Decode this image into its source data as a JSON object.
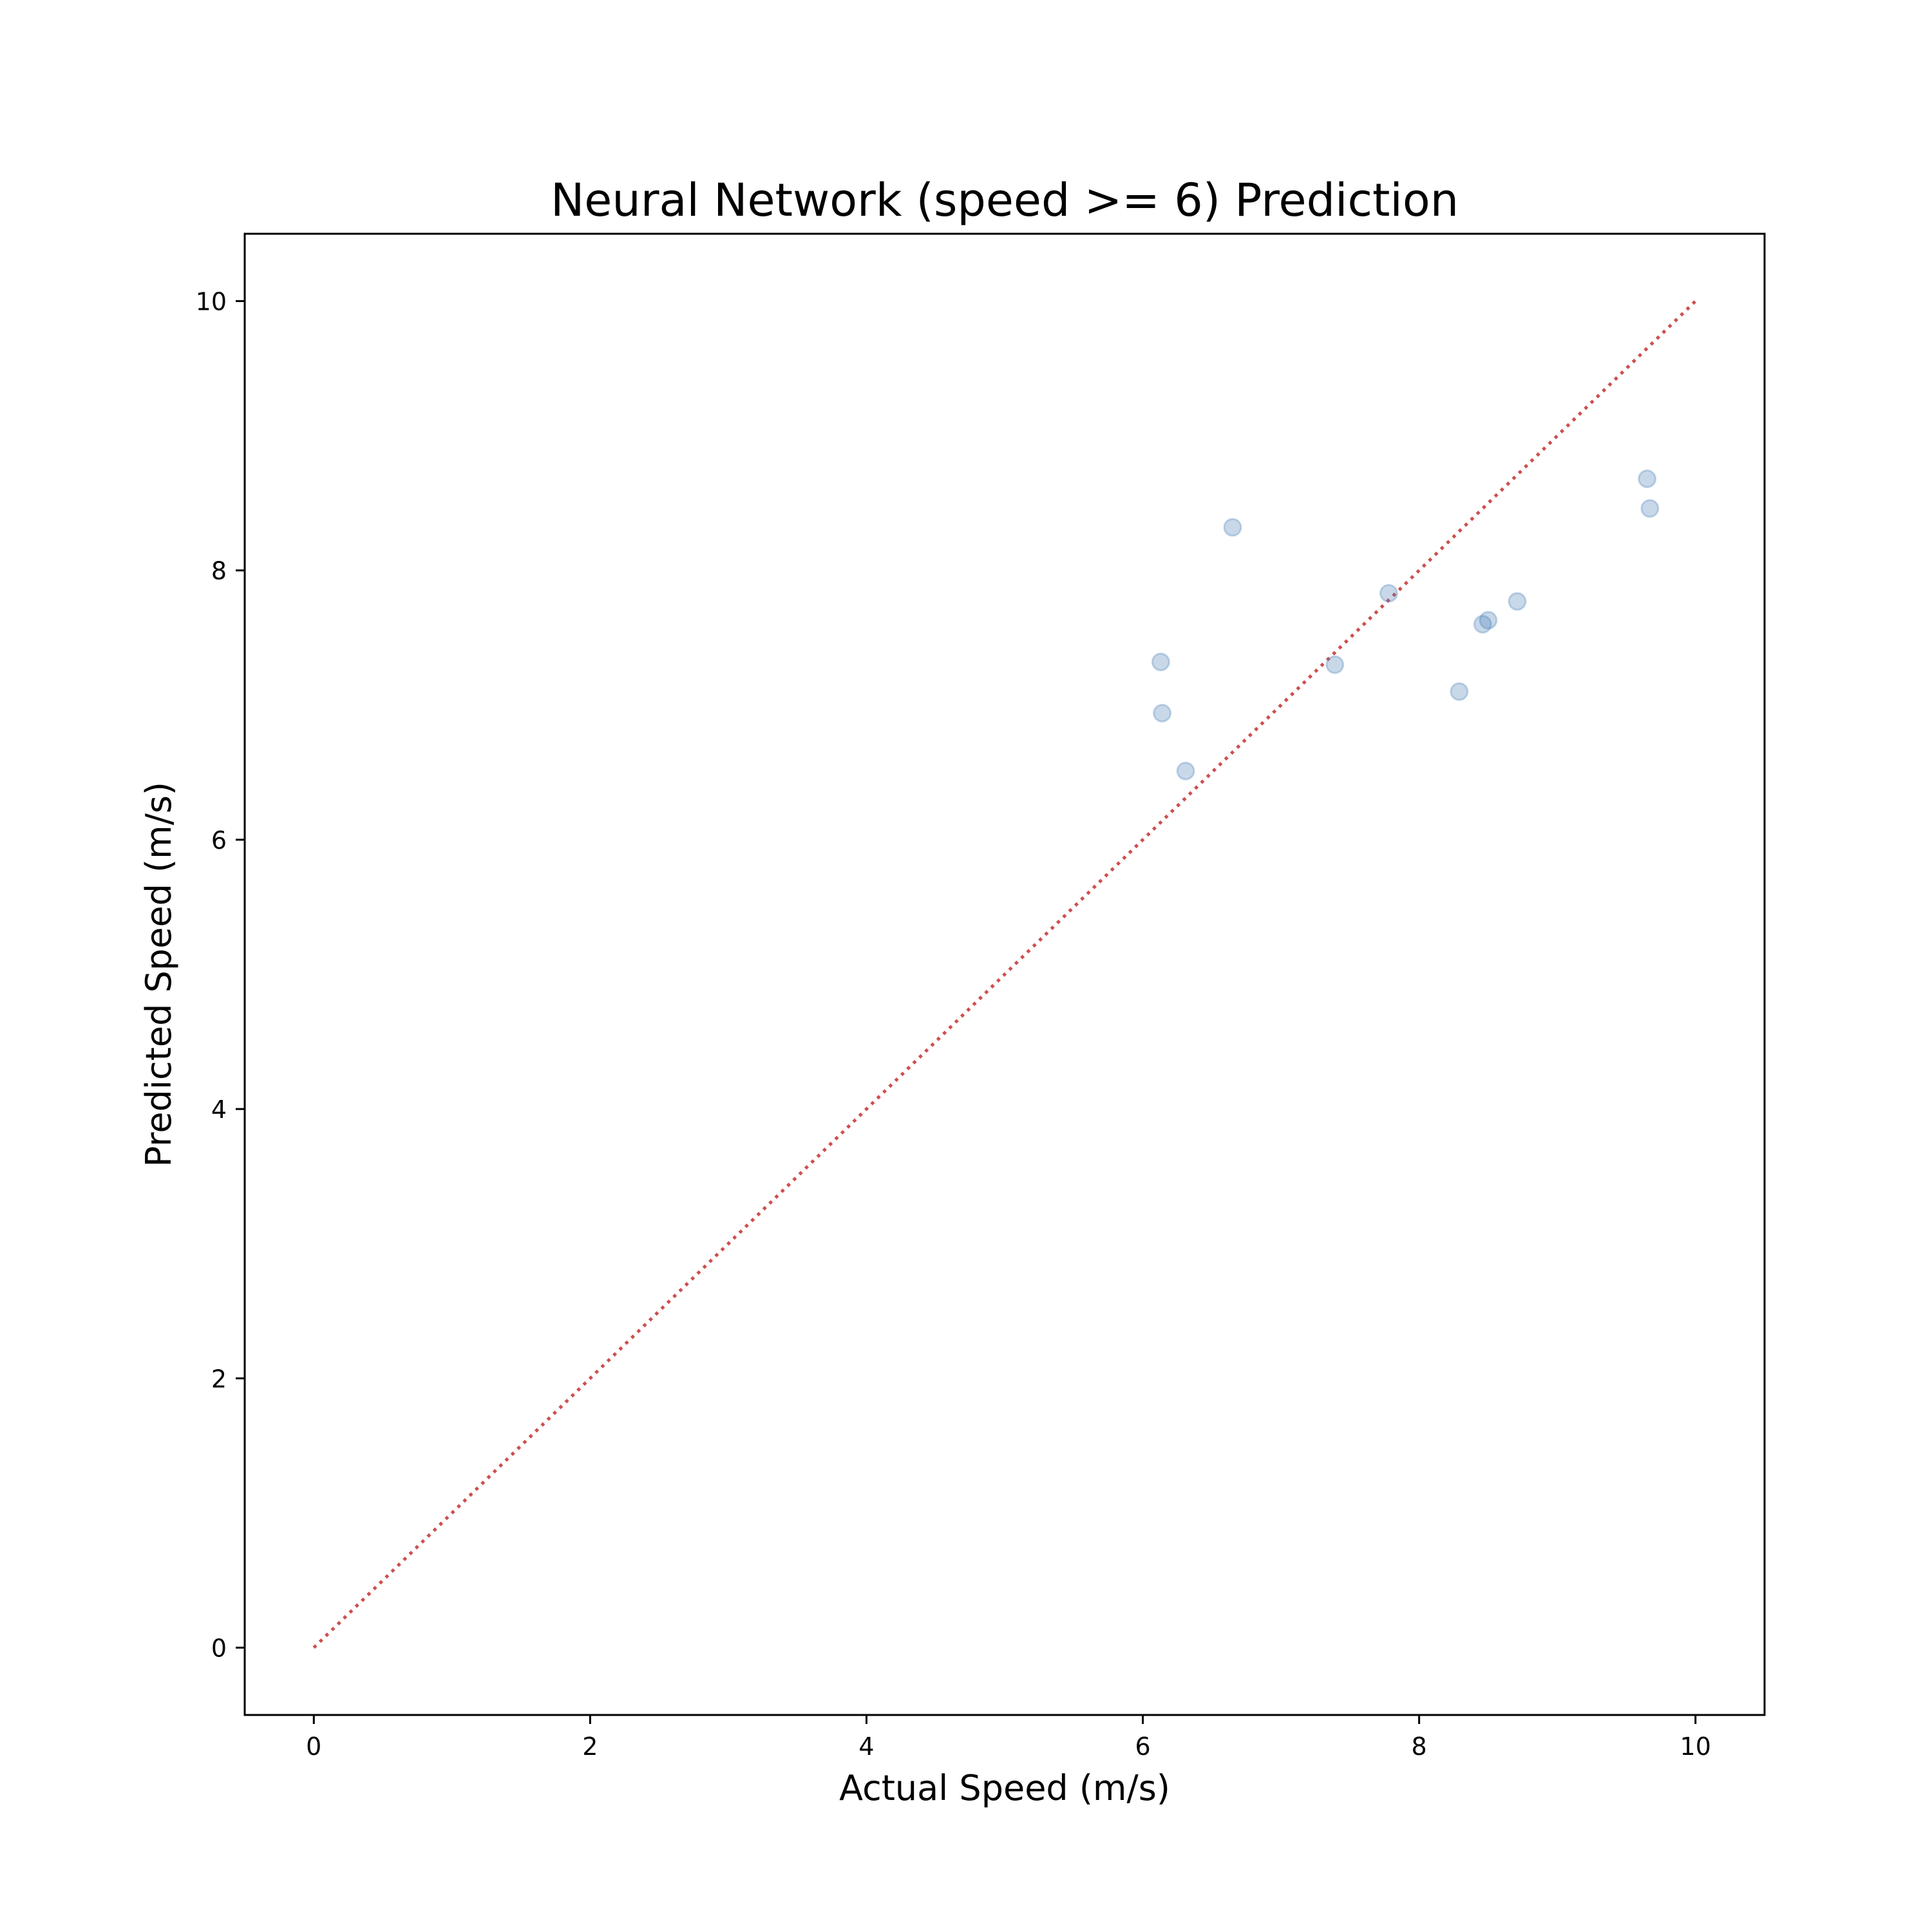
{
  "chart_data": {
    "type": "scatter",
    "title": "Neural Network (speed >= 6) Prediction",
    "xlabel": "Actual Speed (m/s)",
    "ylabel": "Predicted Speed (m/s)",
    "xlim": [
      -0.5,
      10.5
    ],
    "ylim": [
      -0.5,
      10.5
    ],
    "xticks": [
      0,
      2,
      4,
      6,
      8,
      10
    ],
    "yticks": [
      0,
      2,
      4,
      6,
      8,
      10
    ],
    "grid": false,
    "point_color": "#4a7fb5",
    "point_alpha": 0.3,
    "reference_line": {
      "style": "dotted",
      "color": "#cd4f4f",
      "x": [
        0,
        10
      ],
      "y": [
        0,
        10
      ]
    },
    "points": [
      {
        "x": 6.13,
        "y": 7.32
      },
      {
        "x": 6.14,
        "y": 6.94
      },
      {
        "x": 6.31,
        "y": 6.51
      },
      {
        "x": 6.65,
        "y": 8.32
      },
      {
        "x": 7.39,
        "y": 7.3
      },
      {
        "x": 7.78,
        "y": 7.83
      },
      {
        "x": 8.29,
        "y": 7.1
      },
      {
        "x": 8.46,
        "y": 7.6
      },
      {
        "x": 8.5,
        "y": 7.63
      },
      {
        "x": 8.71,
        "y": 7.77
      },
      {
        "x": 9.65,
        "y": 8.68
      },
      {
        "x": 9.67,
        "y": 8.46
      }
    ]
  }
}
